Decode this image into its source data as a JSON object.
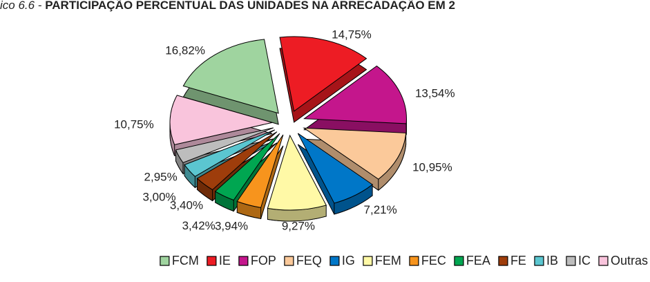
{
  "chart_data": {
    "type": "pie",
    "title_prefix": "ico 6.6 - ",
    "title": "PARTICIPAÇÃO PERCENTUAL DAS UNIDADES NA ARRECADAÇÃO EM 2",
    "categories": [
      "FCM",
      "IE",
      "FOP",
      "FEQ",
      "IG",
      "FEM",
      "FEC",
      "FEA",
      "FE",
      "IB",
      "IC",
      "Outras"
    ],
    "values": [
      16.82,
      14.75,
      13.54,
      10.95,
      7.21,
      9.27,
      3.94,
      3.42,
      3.4,
      3.0,
      2.95,
      10.75
    ],
    "value_labels": [
      "16,82%",
      "14,75%",
      "13,54%",
      "10,95%",
      "7,21%",
      "9,27%",
      "3,94%",
      "3,42%",
      "3,40%",
      "3,00%",
      "2,95%",
      "10,75%"
    ],
    "colors": [
      "#9fd49f",
      "#ed1c24",
      "#c4168c",
      "#fbc99a",
      "#0077c8",
      "#fff9a6",
      "#f7941d",
      "#00a651",
      "#9e3d0b",
      "#5bc6d0",
      "#bdbdbd",
      "#f9c4dc"
    ],
    "legend": "bottom"
  }
}
